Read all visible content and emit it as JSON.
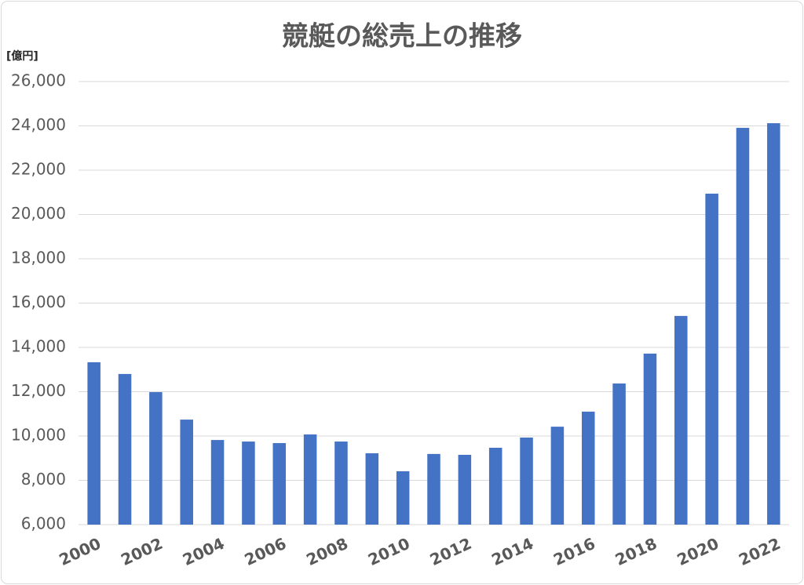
{
  "chart_data": {
    "type": "bar",
    "title": "競艇の総売上の推移",
    "y_label": "[億円]",
    "categories": [
      "2000",
      null,
      "2002",
      null,
      "2004",
      null,
      "2006",
      null,
      "2008",
      null,
      "2010",
      null,
      "2012",
      null,
      "2014",
      null,
      "2016",
      null,
      "2018",
      null,
      "2020",
      null,
      "2022"
    ],
    "values": [
      13330,
      12800,
      11980,
      10740,
      9820,
      9750,
      9680,
      10070,
      9750,
      9220,
      8410,
      9190,
      9150,
      9470,
      9930,
      10420,
      11100,
      12370,
      13720,
      15420,
      20940,
      23910,
      24120
    ],
    "color": "#4472c4",
    "ylim": [
      6000,
      26000
    ],
    "yticks": [
      {
        "value": 6000,
        "label": "6,000"
      },
      {
        "value": 8000,
        "label": "8,000"
      },
      {
        "value": 10000,
        "label": "10,000"
      },
      {
        "value": 12000,
        "label": "12,000"
      },
      {
        "value": 14000,
        "label": "14,000"
      },
      {
        "value": 16000,
        "label": "16,000"
      },
      {
        "value": 18000,
        "label": "18,000"
      },
      {
        "value": 20000,
        "label": "20,000"
      },
      {
        "value": 22000,
        "label": "22,000"
      },
      {
        "value": 24000,
        "label": "24,000"
      },
      {
        "value": 26000,
        "label": "26,000"
      }
    ],
    "grid": true
  }
}
